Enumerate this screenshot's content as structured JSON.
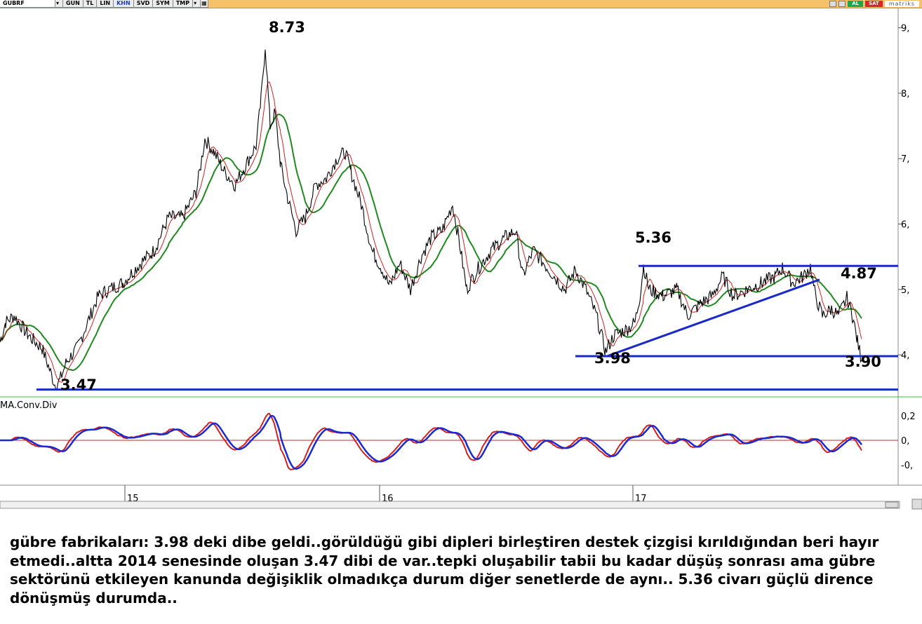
{
  "toolbar": {
    "symbol": "GUBRF",
    "buttons": [
      "GUN",
      "TL",
      "LIN",
      "KHN",
      "SVD",
      "SYM",
      "TMP"
    ],
    "active_button": "KHN",
    "right_buttons": [
      "AL",
      "SAT"
    ],
    "brand": "matriks"
  },
  "chart_data": [
    {
      "type": "line",
      "title": "",
      "price_axis_ticks": [
        "9,",
        "8,",
        "7,",
        "6,",
        "5,",
        "4,"
      ],
      "price_axis_values": [
        9,
        8,
        7,
        6,
        5,
        4
      ],
      "x_ticks": [
        "15",
        "16",
        "17"
      ],
      "ylim": [
        3.4,
        9.1
      ],
      "grid": false,
      "series": [
        {
          "role": "price",
          "color": "#000000"
        },
        {
          "role": "ma-short",
          "color": "#d22020"
        },
        {
          "role": "ma-long",
          "color": "#1e8a1e"
        }
      ],
      "price_path": [
        [
          0,
          4.2
        ],
        [
          8,
          4.5
        ],
        [
          20,
          4.6
        ],
        [
          40,
          4.3
        ],
        [
          60,
          4.1
        ],
        [
          78,
          3.55
        ],
        [
          85,
          3.6
        ],
        [
          95,
          3.9
        ],
        [
          110,
          4.1
        ],
        [
          125,
          4.5
        ],
        [
          140,
          4.9
        ],
        [
          155,
          5.0
        ],
        [
          175,
          5.1
        ],
        [
          200,
          5.4
        ],
        [
          220,
          5.6
        ],
        [
          240,
          6.1
        ],
        [
          260,
          6.1
        ],
        [
          280,
          6.5
        ],
        [
          292,
          7.3
        ],
        [
          305,
          7.1
        ],
        [
          320,
          6.8
        ],
        [
          335,
          6.6
        ],
        [
          350,
          6.9
        ],
        [
          365,
          7.2
        ],
        [
          372,
          7.9
        ],
        [
          378,
          8.73
        ],
        [
          385,
          7.5
        ],
        [
          392,
          7.7
        ],
        [
          400,
          6.9
        ],
        [
          410,
          6.4
        ],
        [
          422,
          5.9
        ],
        [
          435,
          6.1
        ],
        [
          450,
          6.6
        ],
        [
          465,
          6.7
        ],
        [
          480,
          7.0
        ],
        [
          492,
          7.1
        ],
        [
          500,
          6.8
        ],
        [
          515,
          6.3
        ],
        [
          530,
          5.6
        ],
        [
          545,
          5.3
        ],
        [
          555,
          5.05
        ],
        [
          570,
          5.4
        ],
        [
          585,
          5.0
        ],
        [
          600,
          5.5
        ],
        [
          615,
          5.8
        ],
        [
          630,
          5.9
        ],
        [
          645,
          6.3
        ],
        [
          655,
          5.7
        ],
        [
          665,
          5.0
        ],
        [
          680,
          5.3
        ],
        [
          700,
          5.6
        ],
        [
          720,
          5.8
        ],
        [
          735,
          5.9
        ],
        [
          745,
          5.2
        ],
        [
          760,
          5.6
        ],
        [
          775,
          5.4
        ],
        [
          790,
          5.2
        ],
        [
          805,
          5.0
        ],
        [
          820,
          5.3
        ],
        [
          835,
          5.0
        ],
        [
          850,
          4.6
        ],
        [
          863,
          4.05
        ],
        [
          875,
          4.3
        ],
        [
          895,
          4.4
        ],
        [
          905,
          4.5
        ],
        [
          912,
          4.9
        ],
        [
          917,
          5.36
        ],
        [
          925,
          5.0
        ],
        [
          945,
          4.9
        ],
        [
          965,
          5.0
        ],
        [
          980,
          4.6
        ],
        [
          1000,
          4.8
        ],
        [
          1015,
          4.9
        ],
        [
          1030,
          5.2
        ],
        [
          1045,
          4.9
        ],
        [
          1065,
          5.0
        ],
        [
          1085,
          5.1
        ],
        [
          1105,
          5.2
        ],
        [
          1115,
          5.33
        ],
        [
          1130,
          5.1
        ],
        [
          1145,
          5.2
        ],
        [
          1155,
          5.35
        ],
        [
          1162,
          4.9
        ],
        [
          1172,
          4.6
        ],
        [
          1185,
          4.7
        ],
        [
          1195,
          4.6
        ],
        [
          1207,
          4.87
        ],
        [
          1215,
          4.6
        ],
        [
          1222,
          4.2
        ],
        [
          1228,
          3.92
        ]
      ],
      "annotations": [
        "8.73",
        "5.36",
        "4.87",
        "3.98",
        "3.90",
        "3.47"
      ],
      "support_resistance_levels": [
        5.36,
        3.98,
        3.47
      ],
      "trendline": {
        "from": [
          865,
          3.98
        ],
        "to": [
          1168,
          5.15
        ]
      }
    },
    {
      "type": "line",
      "indicator_label": "MA.Conv.Div",
      "y_ticks": [
        "0,2",
        "0,",
        "-0,"
      ],
      "y_values": [
        0.2,
        0.0,
        -0.2
      ],
      "series": [
        {
          "role": "macd",
          "color": "#d22020"
        },
        {
          "role": "signal",
          "color": "#1a2ad0"
        }
      ],
      "zero_line_color": "#b03030"
    }
  ],
  "caption": {
    "text": "gübre fabrikaları: 3.98 deki dibe geldi..görüldüğü gibi dipleri birleştiren destek çizgisi kırıldığından beri hayır etmedi..altta 2014 senesinde oluşan 3.47 dibi de var..tepki oluşabilir tabii bu kadar düşüş sonrası ama gübre sektörünü etkileyen kanunda değişiklik olmadıkça durum diğer senetlerde de aynı.. 5.36 civarı güçlü dirence dönüşmüş durumda.."
  },
  "colors": {
    "toolbar_bg": "#f5c26a",
    "level_line": "#1a2ac8",
    "price": "#000000",
    "ma_short": "#d22020",
    "ma_long": "#1e8a1e",
    "macd_red": "#d22020",
    "macd_blue": "#1a2ad0"
  }
}
